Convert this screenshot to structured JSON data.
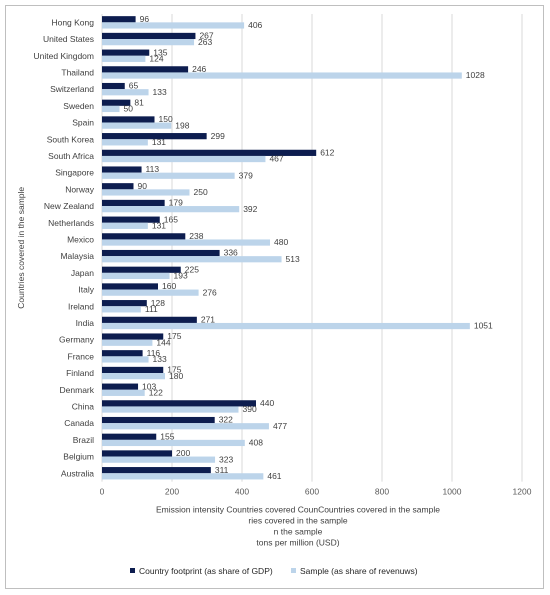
{
  "chart_data": {
    "type": "bar",
    "orientation": "horizontal",
    "categories": [
      "Hong Kong",
      "United States",
      "United Kingdom",
      "Thailand",
      "Switzerland",
      "Sweden",
      "Spain",
      "South Korea",
      "South Africa",
      "Singapore",
      "Norway",
      "New Zealand",
      "Netherlands",
      "Mexico",
      "Malaysia",
      "Japan",
      "Italy",
      "Ireland",
      "India",
      "Germany",
      "France",
      "Finland",
      "Denmark",
      "China",
      "Canada",
      "Brazil",
      "Belgium",
      "Australia"
    ],
    "series": [
      {
        "name": "Country footprint (as share of GDP)",
        "color": "#0d1d4f",
        "values": [
          96,
          267,
          135,
          246,
          65,
          81,
          150,
          299,
          612,
          113,
          90,
          179,
          165,
          238,
          336,
          225,
          160,
          128,
          271,
          175,
          116,
          175,
          103,
          440,
          322,
          155,
          200,
          311
        ]
      },
      {
        "name": "Sample (as share of revenuws)",
        "color": "#bcd4ea",
        "values": [
          406,
          263,
          124,
          1028,
          133,
          50,
          198,
          131,
          467,
          379,
          250,
          392,
          131,
          480,
          513,
          193,
          276,
          111,
          1051,
          144,
          133,
          180,
          122,
          390,
          477,
          408,
          323,
          461
        ]
      }
    ],
    "xlim": [
      0,
      1200
    ],
    "xticks": [
      0,
      200,
      400,
      600,
      800,
      1000,
      1200
    ],
    "xlabel_lines": [
      "Emission intensity Countries covered CounCountries covered in the sample",
      "ries covered in the sample",
      "n the sample",
      "tons per million (USD)"
    ],
    "ylabel": "Countries covered in the sample",
    "grid": "vertical",
    "legend_position": "bottom"
  }
}
